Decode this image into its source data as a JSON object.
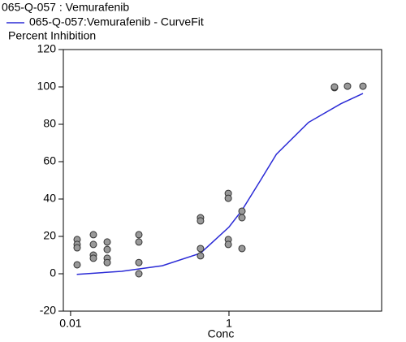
{
  "chart_data": {
    "type": "scatter",
    "ylabel": "Percent Inhibition",
    "xlabel": "Conc",
    "xlog": true,
    "xlim": [
      0.0081,
      84.7
    ],
    "ylim": [
      -20,
      120
    ],
    "xticks": [
      0.01,
      1
    ],
    "yticks": [
      -20,
      0,
      20,
      40,
      60,
      80,
      100,
      120
    ],
    "series": [
      {
        "name": "065-Q-057  : Vemurafenib",
        "color": "#999999",
        "x": [
          0.0121,
          0.0121,
          0.0121,
          0.0121,
          0.0194,
          0.0194,
          0.0194,
          0.0194,
          0.029,
          0.029,
          0.029,
          0.029,
          0.0728,
          0.0728,
          0.0728,
          0.0728,
          0.437,
          0.437,
          0.437,
          0.437,
          0.98,
          0.98,
          0.98,
          0.98,
          1.46,
          1.46,
          1.46,
          21.5,
          21.5,
          31.4,
          49.2
        ],
        "values": [
          18.3,
          15.7,
          13.9,
          4.8,
          20.9,
          15.7,
          10,
          8.3,
          17,
          13,
          8.3,
          6,
          20.9,
          17,
          6,
          0,
          30,
          28.3,
          13.5,
          9.6,
          43,
          40.4,
          18.3,
          15.7,
          33.5,
          30,
          13.5,
          99.6,
          100,
          100.4,
          100.4
        ]
      },
      {
        "name": "065-Q-057:Vemurafenib - CurveFit",
        "color": "#2b2bd6",
        "x": [
          0.012,
          0.044,
          0.144,
          0.437,
          1,
          1.46,
          2.5,
          3.97,
          10.1,
          25.9,
          49.2
        ],
        "values": [
          -0.3,
          1.3,
          4.3,
          11,
          25,
          34,
          50,
          64,
          81,
          91,
          96.5
        ]
      }
    ]
  }
}
